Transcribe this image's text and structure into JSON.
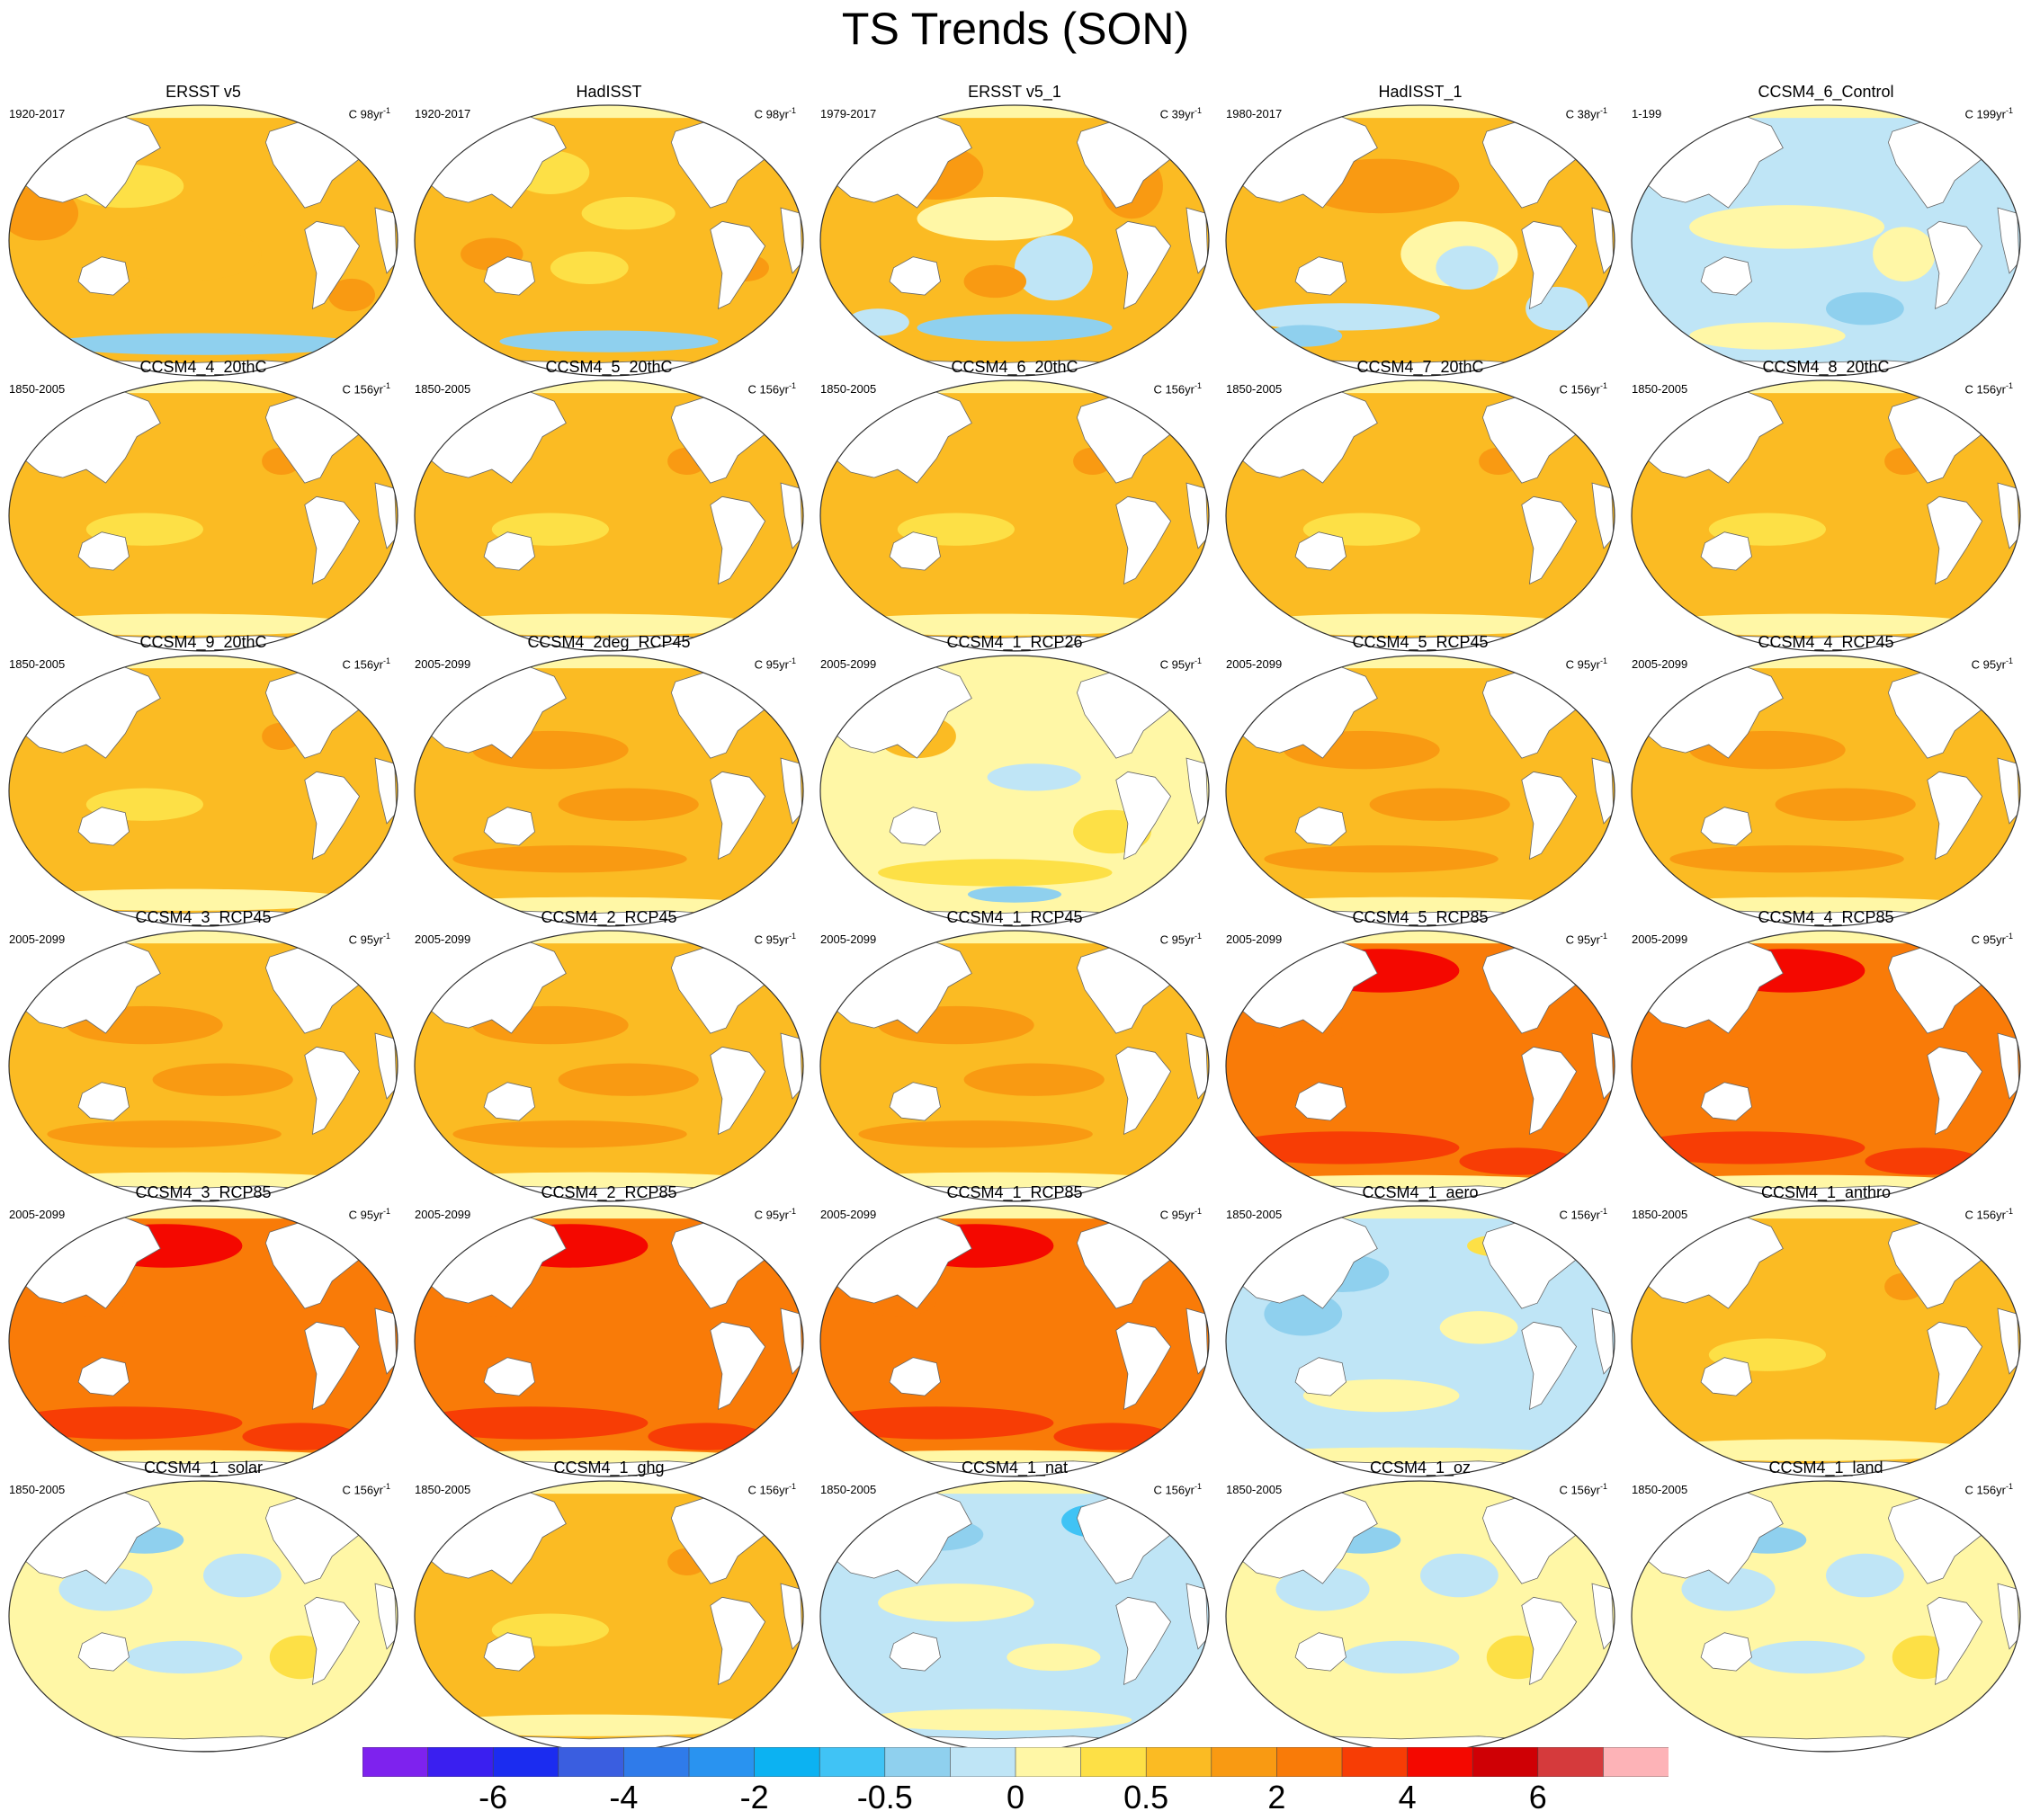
{
  "title": "TS Trends (SON)",
  "units_prefix": "C",
  "units_suffix": "yr",
  "units_exponent": "-1",
  "colorbar": {
    "colors": [
      "#7e22ee",
      "#3a1ff0",
      "#1b2cf0",
      "#3a5ee0",
      "#2f7bea",
      "#2993f0",
      "#0cb2f2",
      "#40c3f5",
      "#8fd0ee",
      "#bfe5f6",
      "#fff7a6",
      "#fde046",
      "#fbbb23",
      "#f99a12",
      "#f97b08",
      "#f73d05",
      "#f40800",
      "#cf0005",
      "#d53a3c",
      "#fdb3b7"
    ],
    "labels": [
      "-6",
      "-4",
      "-2",
      "-0.5",
      "0",
      "0.5",
      "2",
      "4",
      "6"
    ]
  },
  "panels": [
    {
      "title": "ERSST v5",
      "period": "1920-2017",
      "years": "98",
      "style": "obs_long1"
    },
    {
      "title": "HadISST",
      "period": "1920-2017",
      "years": "98",
      "style": "obs_long2"
    },
    {
      "title": "ERSST v5_1",
      "period": "1979-2017",
      "years": "39",
      "style": "obs_short1"
    },
    {
      "title": "HadISST_1",
      "period": "1980-2017",
      "years": "38",
      "style": "obs_short2"
    },
    {
      "title": "CCSM4_6_Control",
      "period": "1-199",
      "years": "199",
      "style": "control"
    },
    {
      "title": "CCSM4_4_20thC",
      "period": "1850-2005",
      "years": "156",
      "style": "hist"
    },
    {
      "title": "CCSM4_5_20thC",
      "period": "1850-2005",
      "years": "156",
      "style": "hist"
    },
    {
      "title": "CCSM4_6_20thC",
      "period": "1850-2005",
      "years": "156",
      "style": "hist"
    },
    {
      "title": "CCSM4_7_20thC",
      "period": "1850-2005",
      "years": "156",
      "style": "hist"
    },
    {
      "title": "CCSM4_8_20thC",
      "period": "1850-2005",
      "years": "156",
      "style": "hist"
    },
    {
      "title": "CCSM4_9_20thC",
      "period": "1850-2005",
      "years": "156",
      "style": "hist"
    },
    {
      "title": "CCSM4_2deg_RCP45",
      "period": "2005-2099",
      "years": "95",
      "style": "rcp45"
    },
    {
      "title": "CCSM4_1_RCP26",
      "period": "2005-2099",
      "years": "95",
      "style": "rcp26"
    },
    {
      "title": "CCSM4_5_RCP45",
      "period": "2005-2099",
      "years": "95",
      "style": "rcp45"
    },
    {
      "title": "CCSM4_4_RCP45",
      "period": "2005-2099",
      "years": "95",
      "style": "rcp45"
    },
    {
      "title": "CCSM4_3_RCP45",
      "period": "2005-2099",
      "years": "95",
      "style": "rcp45"
    },
    {
      "title": "CCSM4_2_RCP45",
      "period": "2005-2099",
      "years": "95",
      "style": "rcp45"
    },
    {
      "title": "CCSM4_1_RCP45",
      "period": "2005-2099",
      "years": "95",
      "style": "rcp45"
    },
    {
      "title": "CCSM4_5_RCP85",
      "period": "2005-2099",
      "years": "95",
      "style": "rcp85"
    },
    {
      "title": "CCSM4_4_RCP85",
      "period": "2005-2099",
      "years": "95",
      "style": "rcp85"
    },
    {
      "title": "CCSM4_3_RCP85",
      "period": "2005-2099",
      "years": "95",
      "style": "rcp85"
    },
    {
      "title": "CCSM4_2_RCP85",
      "period": "2005-2099",
      "years": "95",
      "style": "rcp85"
    },
    {
      "title": "CCSM4_1_RCP85",
      "period": "2005-2099",
      "years": "95",
      "style": "rcp85"
    },
    {
      "title": "CCSM4_1_aero",
      "period": "1850-2005",
      "years": "156",
      "style": "aero"
    },
    {
      "title": "CCSM4_1_anthro",
      "period": "1850-2005",
      "years": "156",
      "style": "hist"
    },
    {
      "title": "CCSM4_1_solar",
      "period": "1850-2005",
      "years": "156",
      "style": "weak"
    },
    {
      "title": "CCSM4_1_ghg",
      "period": "1850-2005",
      "years": "156",
      "style": "hist"
    },
    {
      "title": "CCSM4_1_nat",
      "period": "1850-2005",
      "years": "156",
      "style": "nat"
    },
    {
      "title": "CCSM4_1_oz",
      "period": "1850-2005",
      "years": "156",
      "style": "weak"
    },
    {
      "title": "CCSM4_1_land",
      "period": "1850-2005",
      "years": "156",
      "style": "weak"
    }
  ]
}
